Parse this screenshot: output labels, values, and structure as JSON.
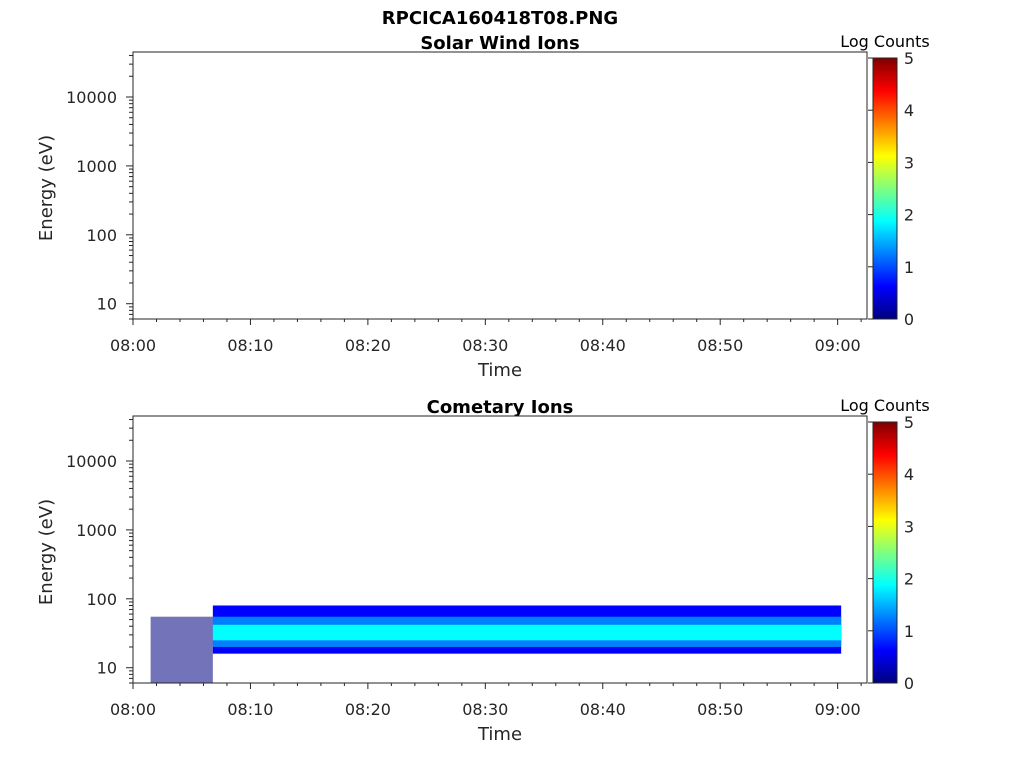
{
  "figure_title": "RPCICA160418T08.PNG",
  "colormap": [
    "#00007f",
    "#0000ff",
    "#007fff",
    "#00ffff",
    "#7fff7f",
    "#ffff00",
    "#ff7f00",
    "#ff0000",
    "#7f0000"
  ],
  "chart_data": [
    {
      "type": "heatmap",
      "title": "Solar Wind Ions",
      "xlabel": "Time",
      "ylabel": "Energy (eV)",
      "x_ticks": [
        "08:00",
        "08:10",
        "08:20",
        "08:30",
        "08:40",
        "08:50",
        "09:00"
      ],
      "x_tick_minutes": [
        0,
        10,
        20,
        30,
        40,
        50,
        60
      ],
      "xlim_minutes": [
        0,
        62.5
      ],
      "y_scale": "log",
      "y_ticks": [
        "10",
        "100",
        "1000",
        "10000"
      ],
      "y_tick_values": [
        10,
        100,
        1000,
        10000
      ],
      "ylim": [
        6,
        45000
      ],
      "colorbar": {
        "label": "Log Counts",
        "ticks": [
          "0",
          "1",
          "2",
          "3",
          "4",
          "5"
        ],
        "range": [
          0,
          5
        ]
      },
      "data_blocks": []
    },
    {
      "type": "heatmap",
      "title": "Cometary Ions",
      "xlabel": "Time",
      "ylabel": "Energy (eV)",
      "x_ticks": [
        "08:00",
        "08:10",
        "08:20",
        "08:30",
        "08:40",
        "08:50",
        "09:00"
      ],
      "x_tick_minutes": [
        0,
        10,
        20,
        30,
        40,
        50,
        60
      ],
      "xlim_minutes": [
        0,
        62.5
      ],
      "y_scale": "log",
      "y_ticks": [
        "10",
        "100",
        "1000",
        "10000"
      ],
      "y_tick_values": [
        10,
        100,
        1000,
        10000
      ],
      "ylim": [
        6,
        45000
      ],
      "colorbar": {
        "label": "Log Counts",
        "ticks": [
          "0",
          "1",
          "2",
          "3",
          "4",
          "5"
        ],
        "range": [
          0,
          5
        ]
      },
      "data_blocks": [
        {
          "t_start_min": 1.5,
          "t_end_min": 6.8,
          "e_low_eV": 6,
          "e_high_eV": 55,
          "log_counts": 0.3,
          "note": "sparse"
        },
        {
          "t_start_min": 6.8,
          "t_end_min": 60.3,
          "e_low_eV": 16,
          "e_high_eV": 80,
          "log_counts": 0.6
        },
        {
          "t_start_min": 6.8,
          "t_end_min": 60.3,
          "e_low_eV": 20,
          "e_high_eV": 55,
          "log_counts": 1.2
        },
        {
          "t_start_min": 6.8,
          "t_end_min": 60.3,
          "e_low_eV": 25,
          "e_high_eV": 42,
          "log_counts": 1.8
        }
      ]
    }
  ]
}
